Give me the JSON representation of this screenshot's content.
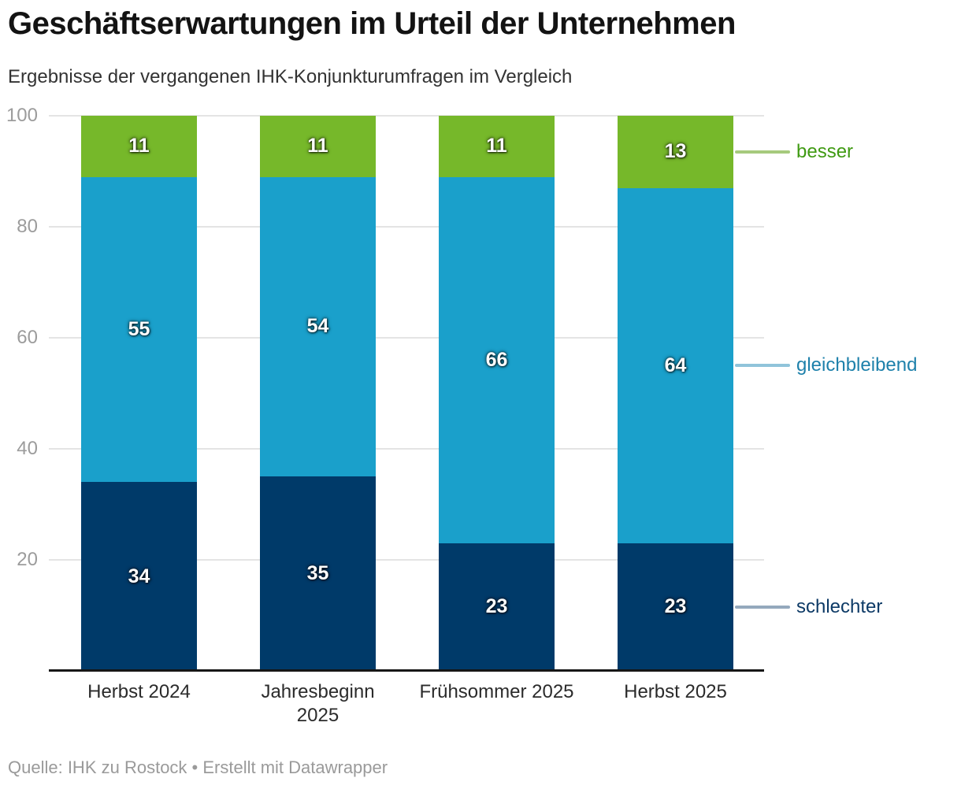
{
  "chart_data": {
    "type": "bar",
    "variant": "stacked-column",
    "title": "Geschäftserwartungen im Urteil der Unternehmen",
    "subtitle": "Ergebnisse der vergangenen IHK-Konjunkturumfragen im Vergleich",
    "categories": [
      "Herbst 2024",
      "Jahresbeginn\n2025",
      "Frühsommer 2025",
      "Herbst 2025"
    ],
    "series": [
      {
        "name": "schlechter",
        "color": "#003a69",
        "label_color": "#0d3a66",
        "line_color": "#94a9bd",
        "values": [
          34,
          35,
          23,
          23
        ]
      },
      {
        "name": "gleichbleibend",
        "color": "#1aa0cb",
        "label_color": "#1e81ab",
        "line_color": "#90c4da",
        "values": [
          55,
          54,
          66,
          64
        ]
      },
      {
        "name": "besser",
        "color": "#76b82a",
        "label_color": "#3f9a12",
        "line_color": "#a6ca7d",
        "values": [
          11,
          11,
          11,
          13
        ]
      }
    ],
    "ylim": [
      0,
      100
    ],
    "yticks": [
      20,
      40,
      60,
      80,
      100
    ],
    "grid": true,
    "legend_position": "right",
    "value_labels": true
  },
  "footer": {
    "text": "Quelle: IHK zu Rostock • Erstellt mit Datawrapper"
  }
}
